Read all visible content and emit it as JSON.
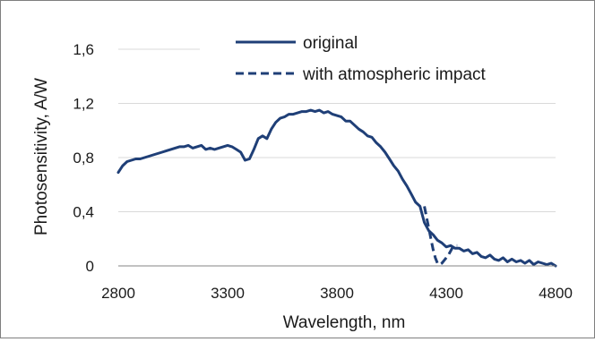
{
  "chart_data": {
    "type": "line",
    "title": "",
    "xlabel": "Wavelength, nm",
    "ylabel": "Photosensitivity, A/W",
    "xlim": [
      2800,
      4800
    ],
    "ylim": [
      0,
      1.6
    ],
    "x_ticks": [
      2800,
      3300,
      3800,
      4300,
      4800
    ],
    "y_ticks": [
      0,
      0.4,
      0.8,
      1.2,
      1.6
    ],
    "x_tick_labels": [
      "2800",
      "3300",
      "3800",
      "4300",
      "4800"
    ],
    "y_tick_labels": [
      "0",
      "0,4",
      "0,8",
      "1,2",
      "1,6"
    ],
    "grid": "horizontal",
    "legend_position": "top-right",
    "line_color": "#1f3f77",
    "series": [
      {
        "name": "original",
        "style": "solid",
        "x": [
          2800,
          2820,
          2840,
          2860,
          2880,
          2900,
          2920,
          2940,
          2960,
          2980,
          3000,
          3020,
          3040,
          3060,
          3080,
          3100,
          3120,
          3140,
          3160,
          3180,
          3200,
          3220,
          3240,
          3260,
          3280,
          3300,
          3320,
          3340,
          3360,
          3380,
          3400,
          3420,
          3440,
          3460,
          3480,
          3500,
          3520,
          3540,
          3560,
          3580,
          3600,
          3620,
          3640,
          3660,
          3680,
          3700,
          3720,
          3740,
          3760,
          3780,
          3800,
          3820,
          3840,
          3860,
          3880,
          3900,
          3920,
          3940,
          3960,
          3980,
          4000,
          4020,
          4040,
          4060,
          4080,
          4100,
          4120,
          4140,
          4160,
          4180,
          4200,
          4220,
          4240,
          4260,
          4280,
          4300,
          4320,
          4340,
          4360,
          4380,
          4400,
          4420,
          4440,
          4460,
          4480,
          4500,
          4520,
          4540,
          4560,
          4580,
          4600,
          4620,
          4640,
          4660,
          4680,
          4700,
          4720,
          4740,
          4760,
          4780,
          4800
        ],
        "y": [
          0.69,
          0.74,
          0.77,
          0.78,
          0.79,
          0.79,
          0.8,
          0.81,
          0.82,
          0.83,
          0.84,
          0.85,
          0.86,
          0.87,
          0.88,
          0.88,
          0.89,
          0.87,
          0.88,
          0.89,
          0.86,
          0.87,
          0.86,
          0.87,
          0.88,
          0.89,
          0.88,
          0.86,
          0.84,
          0.78,
          0.79,
          0.86,
          0.94,
          0.96,
          0.94,
          1.01,
          1.06,
          1.09,
          1.1,
          1.12,
          1.12,
          1.13,
          1.14,
          1.14,
          1.15,
          1.14,
          1.15,
          1.13,
          1.14,
          1.12,
          1.11,
          1.1,
          1.07,
          1.07,
          1.04,
          1.01,
          0.99,
          0.96,
          0.95,
          0.91,
          0.88,
          0.84,
          0.79,
          0.74,
          0.7,
          0.64,
          0.59,
          0.53,
          0.47,
          0.44,
          0.32,
          0.26,
          0.23,
          0.19,
          0.17,
          0.14,
          0.15,
          0.13,
          0.13,
          0.11,
          0.12,
          0.09,
          0.1,
          0.07,
          0.06,
          0.08,
          0.05,
          0.04,
          0.06,
          0.03,
          0.05,
          0.03,
          0.04,
          0.02,
          0.04,
          0.01,
          0.03,
          0.02,
          0.01,
          0.02,
          0.0
        ]
      },
      {
        "name": "with atmospheric impact",
        "style": "dashed",
        "x": [
          4200,
          4210,
          4220,
          4230,
          4240,
          4250,
          4260,
          4270,
          4280,
          4290,
          4300,
          4310,
          4320,
          4330,
          4340,
          4350
        ],
        "y": [
          0.44,
          0.36,
          0.28,
          0.2,
          0.12,
          0.06,
          0.02,
          0.01,
          0.02,
          0.04,
          0.06,
          0.08,
          0.11,
          0.14,
          0.15,
          0.15
        ]
      }
    ]
  }
}
